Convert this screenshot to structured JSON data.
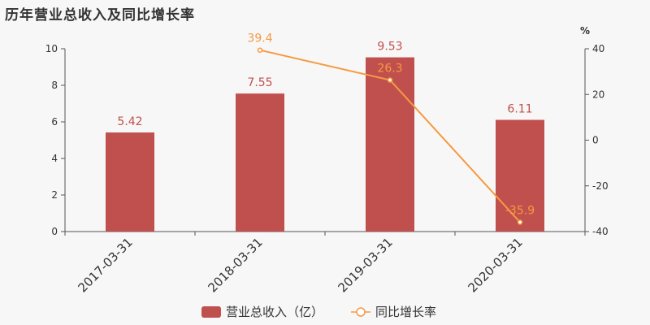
{
  "title": "历年营业总收入及同比增长率",
  "chart_data": {
    "type": "bar",
    "title": "历年营业总收入及同比增长率",
    "categories": [
      "2017-03-31",
      "2018-03-31",
      "2019-03-31",
      "2020-03-31"
    ],
    "series": [
      {
        "name": "营业总收入（亿）",
        "type": "bar",
        "axis": "left",
        "color": "#c0504d",
        "values": [
          5.42,
          7.55,
          9.53,
          6.11
        ]
      },
      {
        "name": "同比增长率",
        "type": "line",
        "axis": "right",
        "color": "#f59a42",
        "values": [
          null,
          39.4,
          26.3,
          -35.9
        ]
      }
    ],
    "y_left": {
      "range": [
        0,
        10
      ],
      "ticks": [
        0,
        2,
        4,
        6,
        8,
        10
      ]
    },
    "y_right": {
      "unit": "%",
      "range": [
        -40,
        40
      ],
      "ticks": [
        -40,
        -20,
        0,
        20,
        40
      ]
    },
    "grid": false,
    "legend_position": "bottom"
  }
}
